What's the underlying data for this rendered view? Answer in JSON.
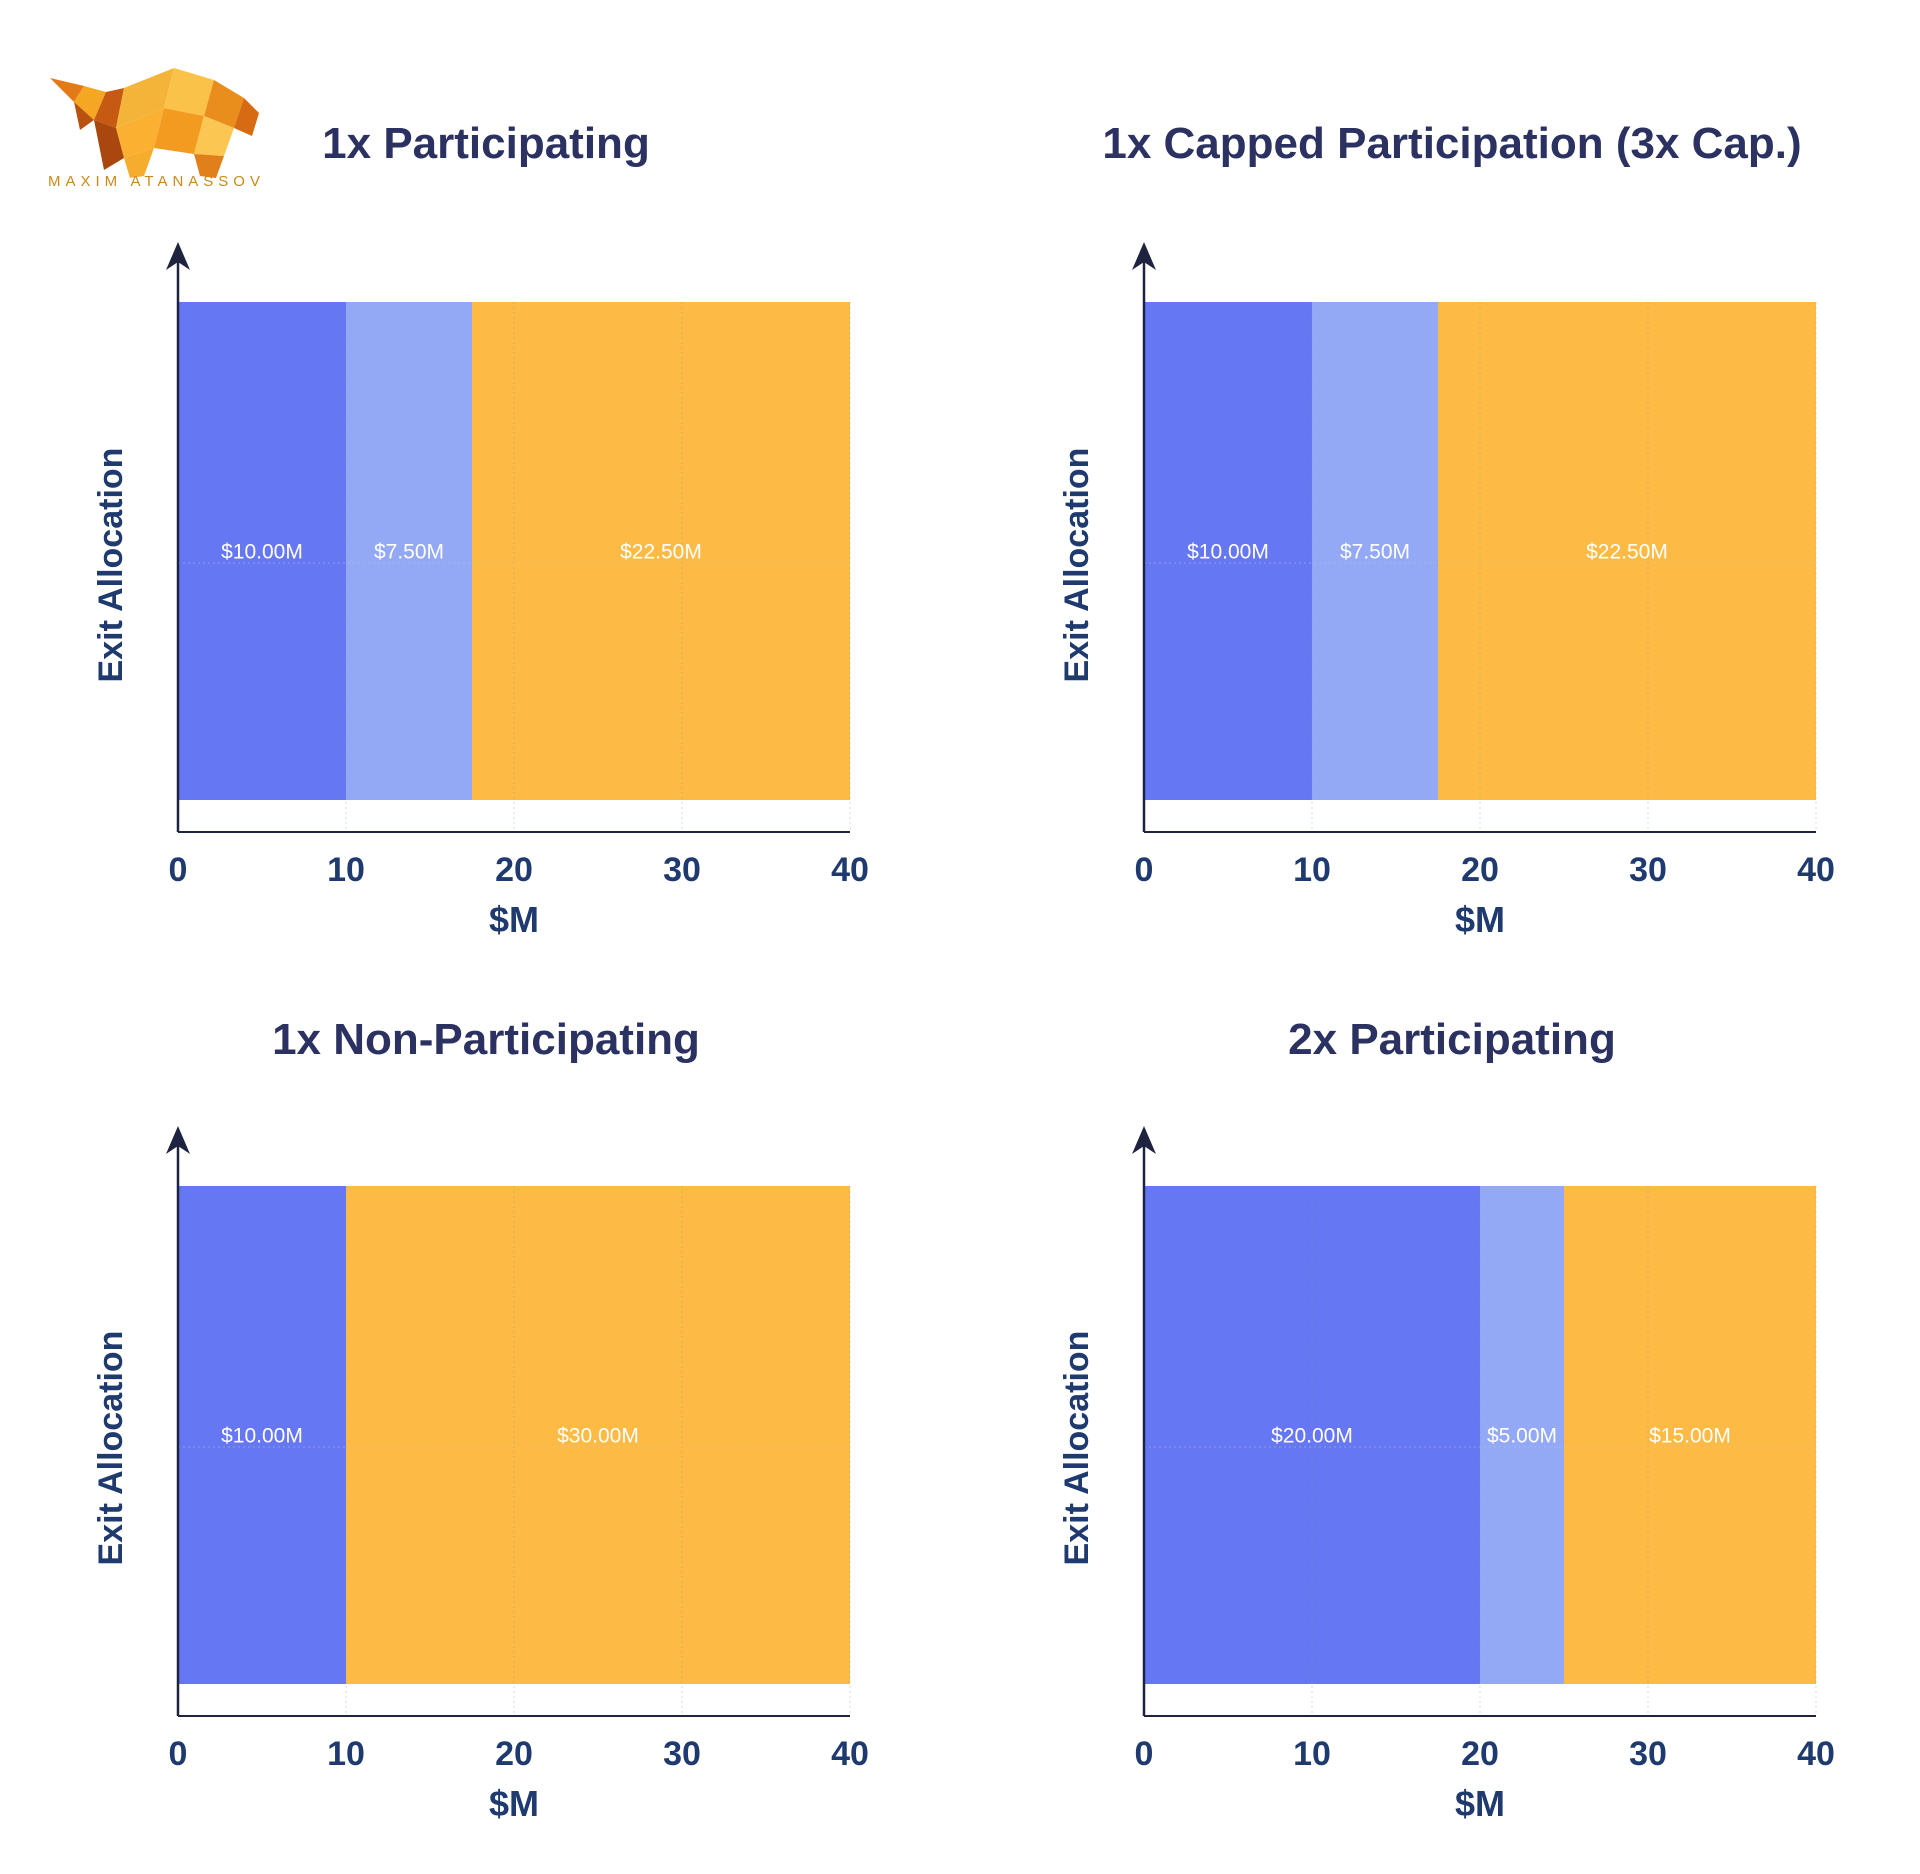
{
  "brand": {
    "logo_text": "MAXIM ATANASSOV",
    "logo_icon": "bull-icon"
  },
  "colors": {
    "segment_1": "#6677f4",
    "segment_2": "#93a9f5",
    "segment_3": "#fdbb45",
    "axis": "#1e2440",
    "text": "#2b3160",
    "ticks": "#1f3a6e"
  },
  "chart_data": [
    {
      "type": "bar",
      "orientation": "horizontal-stacked",
      "title": "1x Participating",
      "xlabel": "$M",
      "ylabel": "Exit Allocation",
      "xlim": [
        0,
        40
      ],
      "xticks": [
        "0",
        "10",
        "20",
        "30",
        "40"
      ],
      "grid": true,
      "segments": [
        {
          "value": 10.0,
          "label": "$10.00M",
          "color": "#6677f4"
        },
        {
          "value": 7.5,
          "label": "$7.50M",
          "color": "#93a9f5"
        },
        {
          "value": 22.5,
          "label": "$22.50M",
          "color": "#fdbb45"
        }
      ]
    },
    {
      "type": "bar",
      "orientation": "horizontal-stacked",
      "title": "1x Capped Participation (3x Cap.)",
      "xlabel": "$M",
      "ylabel": "Exit Allocation",
      "xlim": [
        0,
        40
      ],
      "xticks": [
        "0",
        "10",
        "20",
        "30",
        "40"
      ],
      "grid": true,
      "segments": [
        {
          "value": 10.0,
          "label": "$10.00M",
          "color": "#6677f4"
        },
        {
          "value": 7.5,
          "label": "$7.50M",
          "color": "#93a9f5"
        },
        {
          "value": 22.5,
          "label": "$22.50M",
          "color": "#fdbb45"
        }
      ]
    },
    {
      "type": "bar",
      "orientation": "horizontal-stacked",
      "title": "1x Non-Participating",
      "xlabel": "$M",
      "ylabel": "Exit Allocation",
      "xlim": [
        0,
        40
      ],
      "xticks": [
        "0",
        "10",
        "20",
        "30",
        "40"
      ],
      "grid": true,
      "segments": [
        {
          "value": 10.0,
          "label": "$10.00M",
          "color": "#6677f4"
        },
        {
          "value": 30.0,
          "label": "$30.00M",
          "color": "#fdbb45"
        }
      ]
    },
    {
      "type": "bar",
      "orientation": "horizontal-stacked",
      "title": "2x Participating",
      "xlabel": "$M",
      "ylabel": "Exit Allocation",
      "xlim": [
        0,
        40
      ],
      "xticks": [
        "0",
        "10",
        "20",
        "30",
        "40"
      ],
      "grid": true,
      "segments": [
        {
          "value": 20.0,
          "label": "$20.00M",
          "color": "#6677f4"
        },
        {
          "value": 5.0,
          "label": "$5.00M",
          "color": "#93a9f5"
        },
        {
          "value": 15.0,
          "label": "$15.00M",
          "color": "#fdbb45"
        }
      ]
    }
  ]
}
